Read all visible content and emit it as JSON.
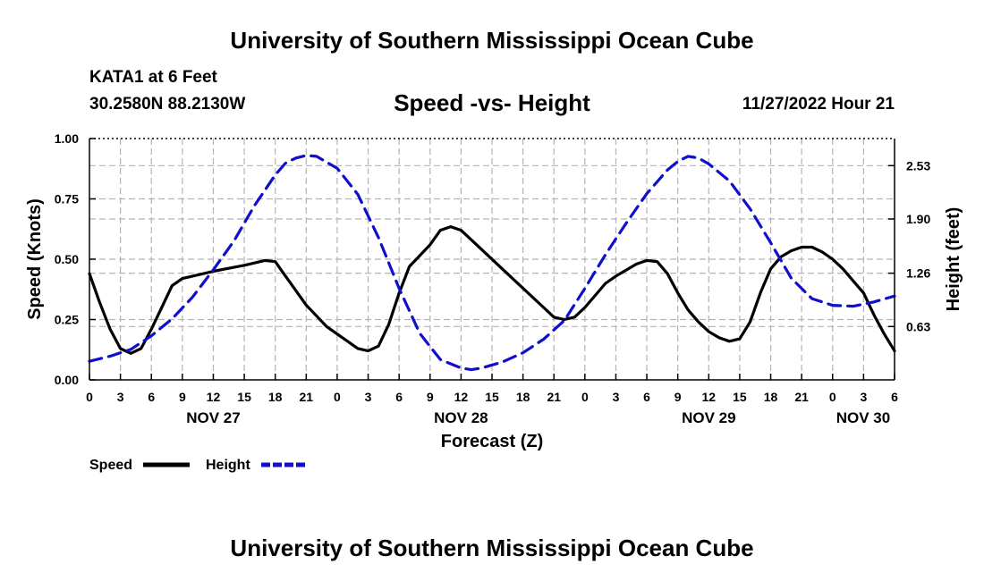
{
  "header": {
    "title": "University of Southern Mississippi Ocean Cube",
    "station": "KATA1 at 6 Feet",
    "coords": "30.2580N  88.2130W",
    "chart_title": "Speed -vs- Height",
    "datetime": "11/27/2022 Hour 21"
  },
  "footer": {
    "title": "University of Southern Mississippi Ocean Cube"
  },
  "chart_data": {
    "type": "line",
    "title": "Speed -vs- Height",
    "xlabel": "Forecast (Z)",
    "ylabel": "Speed (Knots)",
    "y2label": "Height (feet)",
    "xlim": [
      0,
      78
    ],
    "ylim": [
      0,
      1.0
    ],
    "y2lim": [
      0,
      2.85
    ],
    "grid": true,
    "x_ticks": [
      0,
      3,
      6,
      9,
      12,
      15,
      18,
      21,
      24,
      27,
      30,
      33,
      36,
      39,
      42,
      45,
      48,
      51,
      54,
      57,
      60,
      63,
      66,
      69,
      72,
      75,
      78
    ],
    "x_tick_labels": [
      "0",
      "3",
      "6",
      "9",
      "12",
      "15",
      "18",
      "21",
      "0",
      "3",
      "6",
      "9",
      "12",
      "15",
      "18",
      "21",
      "0",
      "3",
      "6",
      "9",
      "12",
      "15",
      "18",
      "21",
      "0",
      "3",
      "6"
    ],
    "y_ticks": [
      0.0,
      0.25,
      0.5,
      0.75,
      1.0
    ],
    "y_tick_labels": [
      "0.00",
      "0.25",
      "0.50",
      "0.75",
      "1.00"
    ],
    "y2_ticks": [
      0.63,
      1.26,
      1.9,
      2.53
    ],
    "y2_tick_labels": [
      "0.63",
      "1.26",
      "1.90",
      "2.53"
    ],
    "day_labels": [
      {
        "x": 12,
        "label": "NOV 27"
      },
      {
        "x": 36,
        "label": "NOV 28"
      },
      {
        "x": 60,
        "label": "NOV 29"
      },
      {
        "x": 78,
        "label": "NOV 30"
      }
    ],
    "legend": {
      "placement": "bottom-left",
      "speed_label": "Speed",
      "height_label": "Height"
    },
    "series": [
      {
        "name": "Speed",
        "axis": "left",
        "color": "#000000",
        "style": "solid",
        "points": [
          [
            0,
            0.44
          ],
          [
            1,
            0.32
          ],
          [
            2,
            0.21
          ],
          [
            3,
            0.13
          ],
          [
            4,
            0.11
          ],
          [
            5,
            0.13
          ],
          [
            6,
            0.21
          ],
          [
            7,
            0.3
          ],
          [
            8,
            0.39
          ],
          [
            9,
            0.42
          ],
          [
            10,
            0.43
          ],
          [
            12,
            0.45
          ],
          [
            15,
            0.475
          ],
          [
            17,
            0.495
          ],
          [
            18,
            0.49
          ],
          [
            19,
            0.43
          ],
          [
            21,
            0.31
          ],
          [
            23,
            0.22
          ],
          [
            25,
            0.16
          ],
          [
            26,
            0.13
          ],
          [
            27,
            0.12
          ],
          [
            28,
            0.14
          ],
          [
            29,
            0.23
          ],
          [
            30,
            0.36
          ],
          [
            31,
            0.47
          ],
          [
            33,
            0.56
          ],
          [
            34,
            0.62
          ],
          [
            35,
            0.635
          ],
          [
            36,
            0.62
          ],
          [
            38,
            0.54
          ],
          [
            40,
            0.46
          ],
          [
            42,
            0.38
          ],
          [
            44,
            0.3
          ],
          [
            45,
            0.26
          ],
          [
            46,
            0.25
          ],
          [
            47,
            0.26
          ],
          [
            48,
            0.3
          ],
          [
            49,
            0.35
          ],
          [
            50,
            0.4
          ],
          [
            51,
            0.43
          ],
          [
            53,
            0.48
          ],
          [
            54,
            0.495
          ],
          [
            55,
            0.49
          ],
          [
            56,
            0.44
          ],
          [
            57,
            0.36
          ],
          [
            58,
            0.29
          ],
          [
            59,
            0.24
          ],
          [
            60,
            0.2
          ],
          [
            61,
            0.175
          ],
          [
            62,
            0.16
          ],
          [
            63,
            0.17
          ],
          [
            64,
            0.24
          ],
          [
            65,
            0.36
          ],
          [
            66,
            0.46
          ],
          [
            67,
            0.51
          ],
          [
            68,
            0.535
          ],
          [
            69,
            0.55
          ],
          [
            70,
            0.55
          ],
          [
            71,
            0.53
          ],
          [
            72,
            0.5
          ],
          [
            73,
            0.46
          ],
          [
            74,
            0.41
          ],
          [
            75,
            0.36
          ],
          [
            76,
            0.27
          ],
          [
            77,
            0.19
          ],
          [
            78,
            0.12
          ]
        ]
      },
      {
        "name": "Height",
        "axis": "right",
        "color": "#1010cc",
        "style": "dashed",
        "points": [
          [
            0,
            0.22
          ],
          [
            2,
            0.28
          ],
          [
            4,
            0.36
          ],
          [
            6,
            0.52
          ],
          [
            8,
            0.72
          ],
          [
            10,
            0.98
          ],
          [
            12,
            1.3
          ],
          [
            14,
            1.64
          ],
          [
            16,
            2.06
          ],
          [
            18,
            2.42
          ],
          [
            19,
            2.56
          ],
          [
            20,
            2.62
          ],
          [
            21,
            2.65
          ],
          [
            22,
            2.64
          ],
          [
            24,
            2.5
          ],
          [
            26,
            2.19
          ],
          [
            28,
            1.68
          ],
          [
            30,
            1.08
          ],
          [
            32,
            0.55
          ],
          [
            34,
            0.24
          ],
          [
            36,
            0.14
          ],
          [
            37,
            0.12
          ],
          [
            38,
            0.14
          ],
          [
            40,
            0.21
          ],
          [
            42,
            0.32
          ],
          [
            44,
            0.48
          ],
          [
            46,
            0.7
          ],
          [
            48,
            1.08
          ],
          [
            50,
            1.48
          ],
          [
            52,
            1.85
          ],
          [
            54,
            2.2
          ],
          [
            56,
            2.48
          ],
          [
            57,
            2.58
          ],
          [
            58,
            2.64
          ],
          [
            59,
            2.62
          ],
          [
            60,
            2.55
          ],
          [
            62,
            2.35
          ],
          [
            64,
            2.02
          ],
          [
            66,
            1.62
          ],
          [
            68,
            1.2
          ],
          [
            70,
            0.96
          ],
          [
            72,
            0.88
          ],
          [
            74,
            0.87
          ],
          [
            76,
            0.92
          ],
          [
            78,
            0.99
          ]
        ]
      }
    ]
  }
}
